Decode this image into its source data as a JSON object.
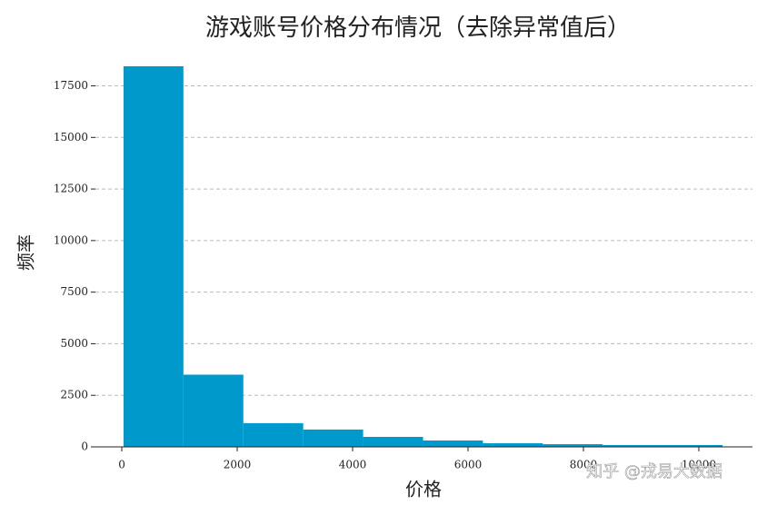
{
  "chart_data": {
    "type": "histogram",
    "title": "游戏账号价格分布情况（去除异常值后）",
    "x_label": "价格",
    "y_label": "频率",
    "bins": [
      30,
      1068,
      2106,
      3144,
      4182,
      5220,
      6258,
      7296,
      8334,
      9372,
      10410
    ],
    "values": [
      18450,
      3500,
      1150,
      840,
      485,
      310,
      175,
      130,
      90,
      90
    ],
    "color": "#0099cc",
    "xlim": [
      -457,
      10929
    ],
    "xticks": [
      0,
      2000,
      4000,
      6000,
      8000,
      10000
    ],
    "ylim": [
      0,
      18800
    ],
    "yticks": [
      0,
      2500,
      5000,
      7500,
      10000,
      12500,
      15000,
      17500
    ],
    "grid": true,
    "watermark": "知乎 @戎易大数据"
  }
}
